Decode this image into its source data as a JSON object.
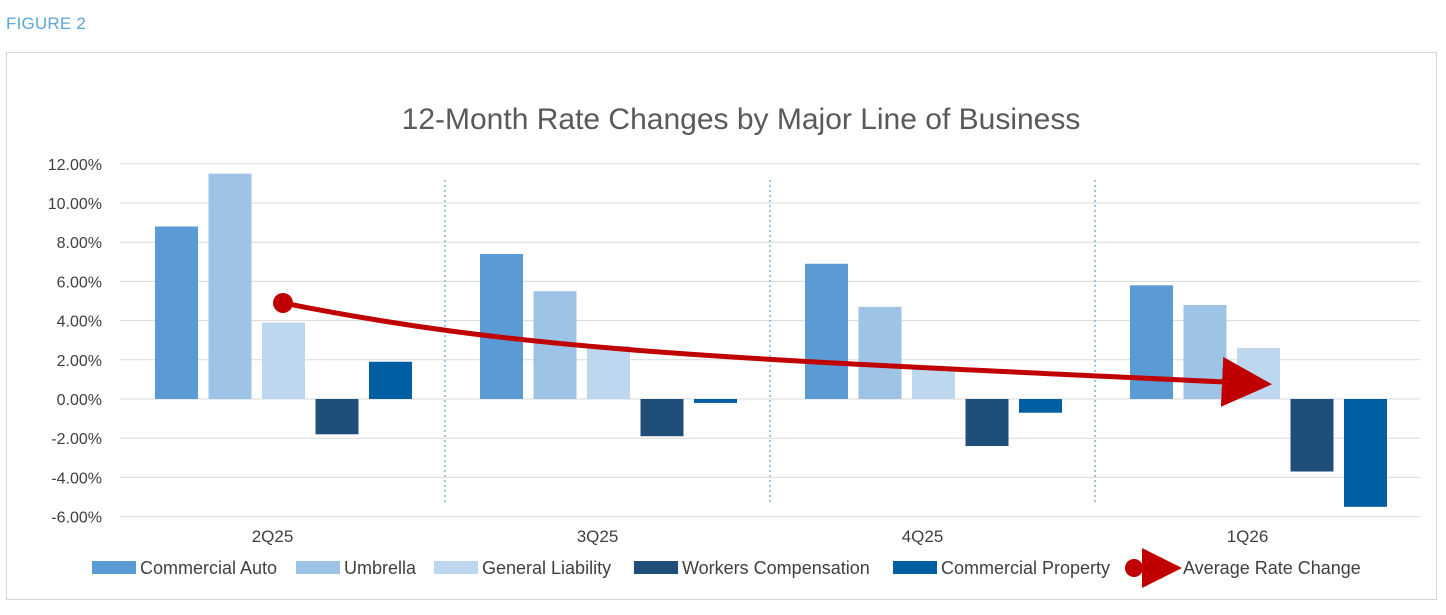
{
  "figure_label": "FIGURE 2",
  "chart_data": {
    "type": "bar",
    "title": "12-Month Rate Changes by Major Line of Business",
    "categories": [
      "2Q25",
      "3Q25",
      "4Q25",
      "1Q26"
    ],
    "ylim": [
      -6,
      12
    ],
    "yticks": [
      "12.00%",
      "10.00%",
      "8.00%",
      "6.00%",
      "4.00%",
      "2.00%",
      "0.00%",
      "-2.00%",
      "-4.00%",
      "-6.00%"
    ],
    "grid": true,
    "legend_position": "bottom",
    "series": [
      {
        "name": "Commercial Auto",
        "color": "#5b9bd5",
        "values": [
          8.8,
          7.4,
          6.9,
          5.8
        ]
      },
      {
        "name": "Umbrella",
        "color": "#9dc3e6",
        "values": [
          11.5,
          5.5,
          4.7,
          4.8
        ]
      },
      {
        "name": "General Liability",
        "color": "#bdd7ee",
        "values": [
          3.9,
          2.7,
          1.6,
          2.6
        ]
      },
      {
        "name": "Workers Compensation",
        "color": "#1f4e79",
        "values": [
          -1.8,
          -1.9,
          -2.4,
          -3.7
        ]
      },
      {
        "name": "Commercial Property",
        "color": "#005fa3",
        "values": [
          1.9,
          -0.2,
          -0.7,
          -5.5
        ]
      }
    ],
    "trend": {
      "name": "Average Rate Change",
      "color": "#c00000",
      "start": 4.9,
      "end": 0.8
    }
  }
}
